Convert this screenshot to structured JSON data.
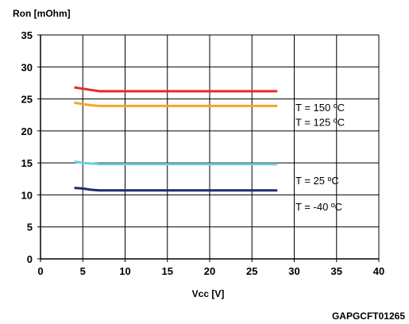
{
  "chart_data": {
    "type": "line",
    "title": "",
    "xlabel": "Vcc [V]",
    "ylabel": "Ron [mOhm]",
    "xlim": [
      0,
      40
    ],
    "ylim": [
      0,
      35
    ],
    "xticks": [
      0,
      5,
      10,
      15,
      20,
      25,
      30,
      35,
      40
    ],
    "yticks": [
      0,
      5,
      10,
      15,
      20,
      25,
      30,
      35
    ],
    "grid": true,
    "legend": "inline-right",
    "figure_code": "GAPGCFT01265",
    "series": [
      {
        "name": "T = 150 ºC",
        "color": "#e8282c",
        "x": [
          4,
          5,
          6,
          7,
          10,
          15,
          20,
          25,
          28
        ],
        "y": [
          26.8,
          26.6,
          26.4,
          26.2,
          26.2,
          26.2,
          26.2,
          26.2,
          26.2
        ]
      },
      {
        "name": "T = 125 ºC",
        "color": "#f5a623",
        "x": [
          4,
          5,
          6,
          7,
          10,
          15,
          20,
          25,
          28
        ],
        "y": [
          24.4,
          24.2,
          24.0,
          23.9,
          23.9,
          23.9,
          23.9,
          23.9,
          23.9
        ]
      },
      {
        "name": "T = 25 ºC",
        "color": "#6ecfd8",
        "x": [
          4,
          5,
          6,
          7,
          10,
          15,
          20,
          25,
          28
        ],
        "y": [
          15.2,
          15.0,
          14.9,
          14.8,
          14.8,
          14.8,
          14.8,
          14.8,
          14.8
        ]
      },
      {
        "name": "T = -40 ºC",
        "color": "#1f2a6b",
        "x": [
          4,
          5,
          6,
          7,
          10,
          15,
          20,
          25,
          28
        ],
        "y": [
          11.1,
          11.0,
          10.8,
          10.7,
          10.7,
          10.7,
          10.7,
          10.7,
          10.7
        ]
      }
    ]
  }
}
